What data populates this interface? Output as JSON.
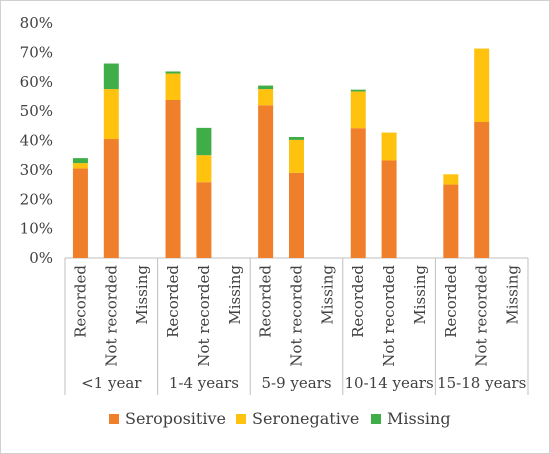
{
  "chart_data": {
    "type": "bar",
    "stacked": true,
    "title": "",
    "xlabel": "",
    "ylabel": "",
    "ylim": [
      0,
      80
    ],
    "y_ticks": [
      "0%",
      "10%",
      "20%",
      "30%",
      "40%",
      "50%",
      "60%",
      "70%",
      "80%"
    ],
    "grid": false,
    "legend_position": "bottom",
    "groups": [
      {
        "label": "<1 year",
        "categories": [
          "Recorded",
          "Not recorded",
          "Missing"
        ]
      },
      {
        "label": "1-4 years",
        "categories": [
          "Recorded",
          "Not recorded",
          "Missing"
        ]
      },
      {
        "label": "5-9 years",
        "categories": [
          "Recorded",
          "Not recorded",
          "Missing"
        ]
      },
      {
        "label": "10-14 years",
        "categories": [
          "Recorded",
          "Not recorded",
          "Missing"
        ]
      },
      {
        "label": "15-18 years",
        "categories": [
          "Recorded",
          "Not recorded",
          "Missing"
        ]
      }
    ],
    "series": [
      {
        "name": "Seropositive",
        "color": "#f07f2b",
        "values": [
          30.5,
          40.5,
          0,
          53.8,
          25.8,
          0,
          52,
          29,
          0,
          44.2,
          33.2,
          0,
          25,
          46.3,
          0
        ]
      },
      {
        "name": "Seronegative",
        "color": "#ffc20e",
        "values": [
          1.8,
          17,
          0,
          9,
          9.2,
          0,
          5.5,
          11.2,
          0,
          12.5,
          9.5,
          0,
          3.5,
          25,
          0
        ]
      },
      {
        "name": "Missing",
        "color": "#3fae49",
        "values": [
          1.7,
          8.7,
          0,
          0.7,
          9.3,
          0,
          1.2,
          1.0,
          0,
          0.6,
          0,
          0,
          0,
          0,
          0
        ]
      }
    ]
  }
}
